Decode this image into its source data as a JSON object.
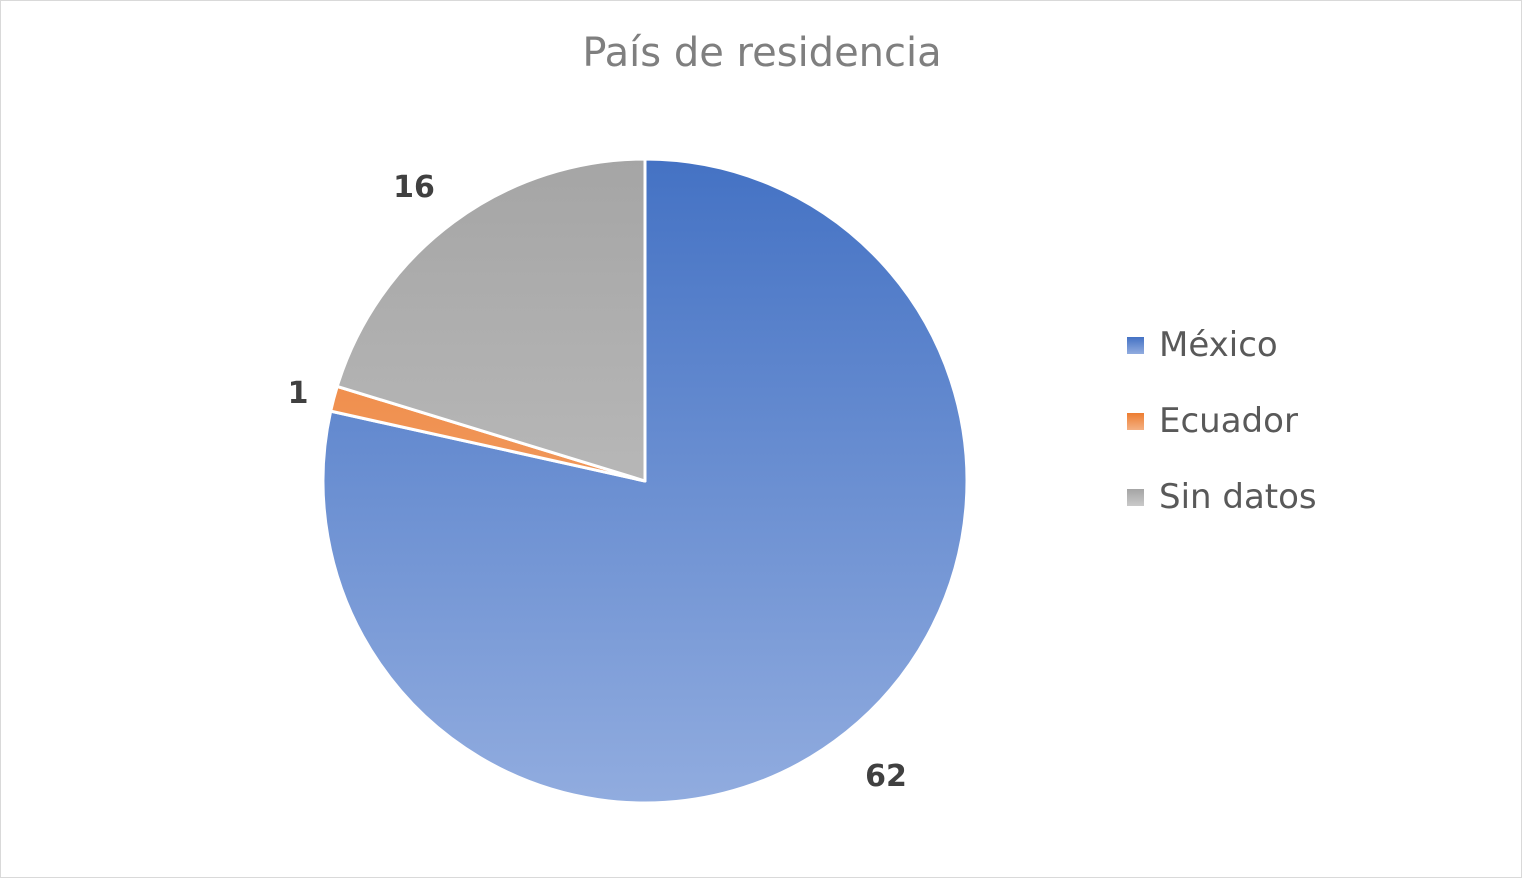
{
  "chart_data": {
    "type": "pie",
    "title": "País de residencia",
    "categories": [
      "México",
      "Ecuador",
      "Sin datos"
    ],
    "values": [
      62,
      1,
      16
    ],
    "data_labels": [
      "62",
      "1",
      "16"
    ],
    "colors": [
      {
        "top": "#4472c4",
        "bottom": "#91acdf"
      },
      {
        "top": "#ed7d31",
        "bottom": "#f4b183"
      },
      {
        "top": "#a5a5a5",
        "bottom": "#c9c9c9"
      }
    ],
    "start_angle_deg": 0,
    "direction": "clockwise",
    "legend_position": "right"
  }
}
